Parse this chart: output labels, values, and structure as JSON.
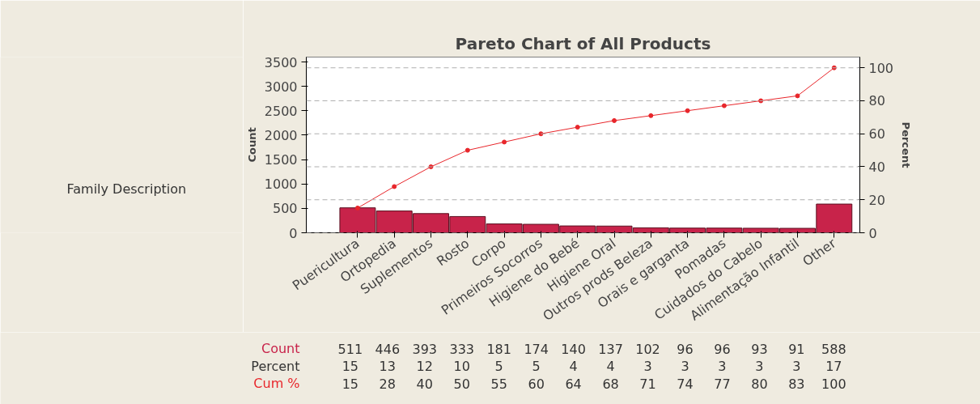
{
  "chart_data": {
    "type": "bar",
    "title": "Pareto Chart of All Products",
    "ylabel": "Count",
    "y2label": "Percent",
    "categories": [
      "Puericultura",
      "Ortopedia",
      "Suplementos",
      "Rosto",
      "Corpo",
      "Primeiros Socorros",
      "Higiene do Bebé",
      "Higiene Oral",
      "Outros prods Beleza",
      "Orais e garganta",
      "Pomadas",
      "Cuidados do Cabelo",
      "Alimentação Infantil",
      "Other"
    ],
    "series": [
      {
        "name": "Count",
        "color": "#c8234a",
        "values": [
          511,
          446,
          393,
          333,
          181,
          174,
          140,
          137,
          102,
          96,
          96,
          93,
          91,
          588
        ]
      },
      {
        "name": "Cum %",
        "type": "line",
        "axis": "y2",
        "color": "#e8262b",
        "values": [
          15,
          28,
          40,
          50,
          55,
          60,
          64,
          68,
          71,
          74,
          77,
          80,
          83,
          100
        ]
      }
    ],
    "annotations": [
      "Family Description",
      "Percent",
      "15",
      "13",
      "12",
      "10",
      "5",
      "5",
      "4",
      "4",
      "3",
      "3",
      "3",
      "3",
      "3",
      "17"
    ],
    "ylim": [
      0,
      3600
    ],
    "yticks": [
      0,
      500,
      1000,
      1500,
      2000,
      2500,
      3000,
      3500
    ],
    "y2lim": [
      0,
      106.5
    ],
    "y2ticks": [
      0,
      20,
      40,
      60,
      80,
      100
    ],
    "grid": "y2",
    "marker": "circle",
    "data_labels": true
  }
}
